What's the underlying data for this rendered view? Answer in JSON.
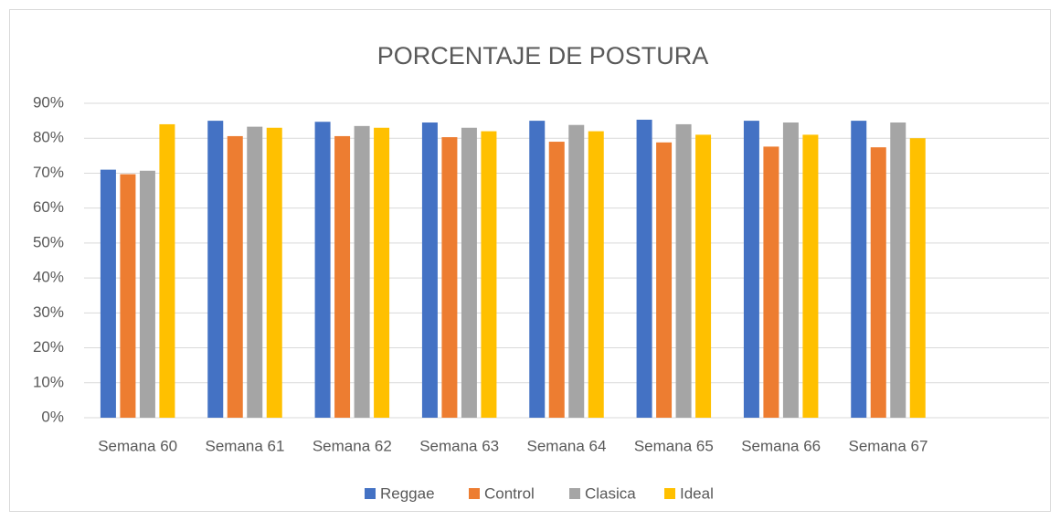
{
  "chart_data": {
    "type": "bar",
    "title": "PORCENTAJE DE POSTURA",
    "categories": [
      "Semana 60",
      "Semana 61",
      "Semana 62",
      "Semana 63",
      "Semana 64",
      "Semana 65",
      "Semana 66",
      "Semana 67",
      null
    ],
    "series": [
      {
        "name": "Reggae",
        "color": "#4472c4",
        "values": [
          71,
          85,
          84.7,
          84.5,
          85,
          85.3,
          85,
          85,
          null
        ]
      },
      {
        "name": "Control",
        "color": "#ed7d31",
        "values": [
          69.7,
          80.6,
          80.6,
          80.3,
          79,
          78.8,
          77.6,
          77.4,
          null
        ]
      },
      {
        "name": "Clasica",
        "color": "#a5a5a5",
        "values": [
          70.7,
          83.3,
          83.5,
          83,
          83.8,
          84,
          84.5,
          84.5,
          null
        ]
      },
      {
        "name": "Ideal",
        "color": "#ffc000",
        "values": [
          84,
          83,
          83,
          82,
          82,
          81,
          81,
          80,
          null
        ]
      }
    ],
    "ylim": [
      0,
      90
    ],
    "yticks": [
      {
        "value": 0,
        "label": "0%"
      },
      {
        "value": 10,
        "label": "10%"
      },
      {
        "value": 20,
        "label": "20%"
      },
      {
        "value": 30,
        "label": "30%"
      },
      {
        "value": 40,
        "label": "40%"
      },
      {
        "value": 50,
        "label": "50%"
      },
      {
        "value": 60,
        "label": "60%"
      },
      {
        "value": 70,
        "label": "70%"
      },
      {
        "value": 80,
        "label": "80%"
      },
      {
        "value": 90,
        "label": "90%"
      }
    ],
    "grid": true,
    "legend": "bottom"
  }
}
